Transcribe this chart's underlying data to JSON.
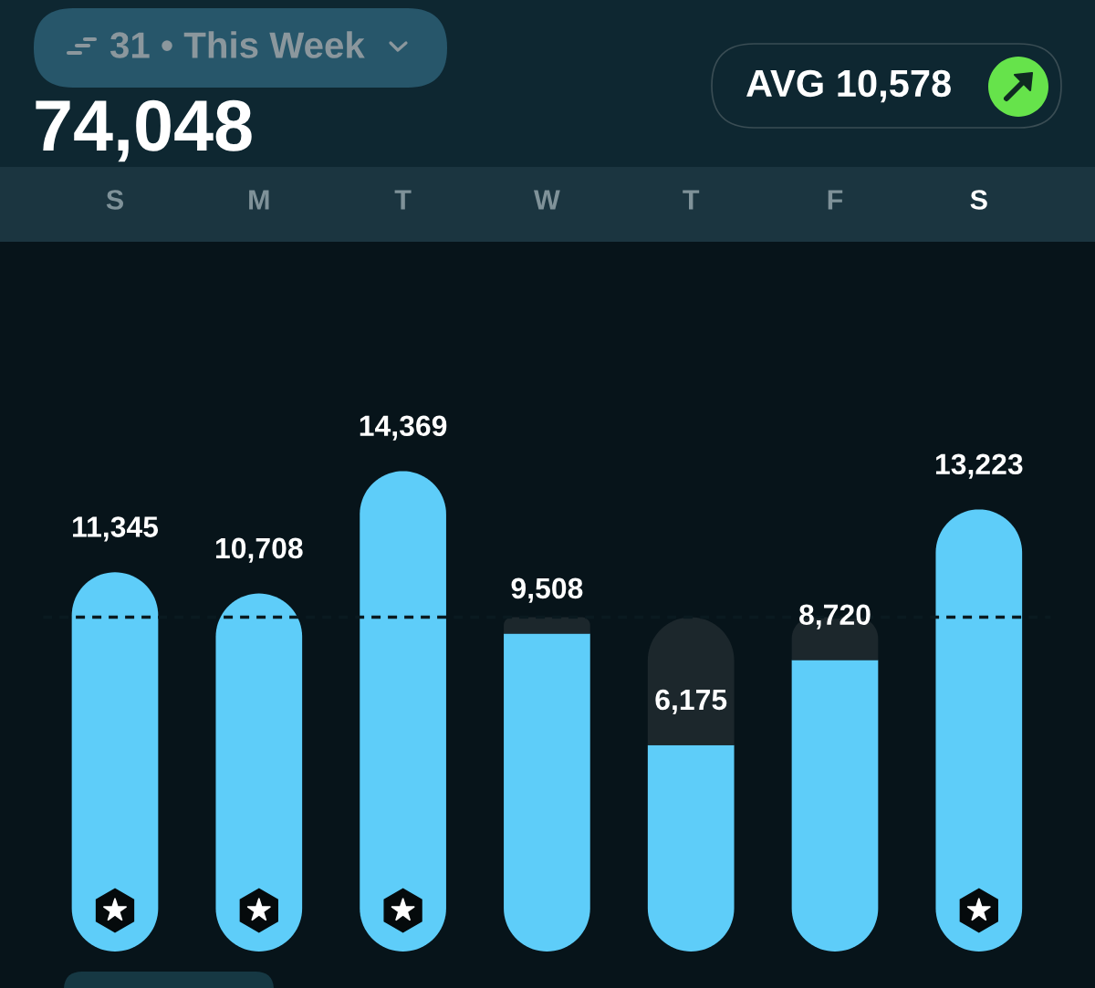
{
  "chart_data": {
    "type": "bar",
    "title": "31 • This Week",
    "subtitle": "74,048",
    "annotations": [
      "AVG 10,578"
    ],
    "categories": [
      "S",
      "M",
      "T",
      "W",
      "T",
      "F",
      "S"
    ],
    "stacked": true,
    "tick_labels": "x",
    "series": [
      {
        "color": "#5ecdf9",
        "values": [
          11345,
          10708,
          14369,
          9508,
          6175,
          8720,
          13223
        ],
        "value_labels": [
          "11,345",
          "10,708",
          "14,369",
          "9,508",
          "6,175",
          "8,720",
          "13,223"
        ]
      },
      {
        "color": "#1c272c",
        "values": [
          null,
          null,
          null,
          492,
          3825,
          1280,
          null
        ]
      }
    ],
    "ref_lines": [
      {
        "axis": "y",
        "value": 10000,
        "color": "#0a1a20",
        "line_style": "dashed"
      }
    ]
  }
}
